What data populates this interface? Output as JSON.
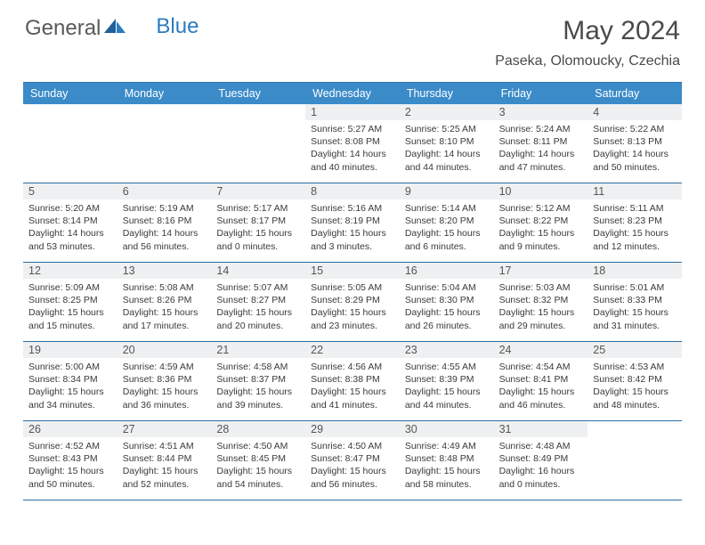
{
  "brand": {
    "part1": "General",
    "part2": "Blue"
  },
  "title": "May 2024",
  "location": "Paseka, Olomoucky, Czechia",
  "colors": {
    "header_bg": "#3b8bc9",
    "header_text": "#ffffff",
    "rule": "#2b6fa8",
    "daynum_bg": "#eef0f1",
    "text": "#3a3a3a",
    "logo_gray": "#5a5a5a",
    "logo_blue": "#2b7cc0"
  },
  "fonts": {
    "title_pt": 30,
    "location_pt": 16,
    "dayheader_pt": 12.5,
    "daynum_pt": 12.5,
    "info_pt": 10.5
  },
  "day_names": [
    "Sunday",
    "Monday",
    "Tuesday",
    "Wednesday",
    "Thursday",
    "Friday",
    "Saturday"
  ],
  "weeks": [
    [
      {
        "n": "",
        "sr": "",
        "ss": "",
        "dl": ""
      },
      {
        "n": "",
        "sr": "",
        "ss": "",
        "dl": ""
      },
      {
        "n": "",
        "sr": "",
        "ss": "",
        "dl": ""
      },
      {
        "n": "1",
        "sr": "Sunrise: 5:27 AM",
        "ss": "Sunset: 8:08 PM",
        "dl": "Daylight: 14 hours and 40 minutes."
      },
      {
        "n": "2",
        "sr": "Sunrise: 5:25 AM",
        "ss": "Sunset: 8:10 PM",
        "dl": "Daylight: 14 hours and 44 minutes."
      },
      {
        "n": "3",
        "sr": "Sunrise: 5:24 AM",
        "ss": "Sunset: 8:11 PM",
        "dl": "Daylight: 14 hours and 47 minutes."
      },
      {
        "n": "4",
        "sr": "Sunrise: 5:22 AM",
        "ss": "Sunset: 8:13 PM",
        "dl": "Daylight: 14 hours and 50 minutes."
      }
    ],
    [
      {
        "n": "5",
        "sr": "Sunrise: 5:20 AM",
        "ss": "Sunset: 8:14 PM",
        "dl": "Daylight: 14 hours and 53 minutes."
      },
      {
        "n": "6",
        "sr": "Sunrise: 5:19 AM",
        "ss": "Sunset: 8:16 PM",
        "dl": "Daylight: 14 hours and 56 minutes."
      },
      {
        "n": "7",
        "sr": "Sunrise: 5:17 AM",
        "ss": "Sunset: 8:17 PM",
        "dl": "Daylight: 15 hours and 0 minutes."
      },
      {
        "n": "8",
        "sr": "Sunrise: 5:16 AM",
        "ss": "Sunset: 8:19 PM",
        "dl": "Daylight: 15 hours and 3 minutes."
      },
      {
        "n": "9",
        "sr": "Sunrise: 5:14 AM",
        "ss": "Sunset: 8:20 PM",
        "dl": "Daylight: 15 hours and 6 minutes."
      },
      {
        "n": "10",
        "sr": "Sunrise: 5:12 AM",
        "ss": "Sunset: 8:22 PM",
        "dl": "Daylight: 15 hours and 9 minutes."
      },
      {
        "n": "11",
        "sr": "Sunrise: 5:11 AM",
        "ss": "Sunset: 8:23 PM",
        "dl": "Daylight: 15 hours and 12 minutes."
      }
    ],
    [
      {
        "n": "12",
        "sr": "Sunrise: 5:09 AM",
        "ss": "Sunset: 8:25 PM",
        "dl": "Daylight: 15 hours and 15 minutes."
      },
      {
        "n": "13",
        "sr": "Sunrise: 5:08 AM",
        "ss": "Sunset: 8:26 PM",
        "dl": "Daylight: 15 hours and 17 minutes."
      },
      {
        "n": "14",
        "sr": "Sunrise: 5:07 AM",
        "ss": "Sunset: 8:27 PM",
        "dl": "Daylight: 15 hours and 20 minutes."
      },
      {
        "n": "15",
        "sr": "Sunrise: 5:05 AM",
        "ss": "Sunset: 8:29 PM",
        "dl": "Daylight: 15 hours and 23 minutes."
      },
      {
        "n": "16",
        "sr": "Sunrise: 5:04 AM",
        "ss": "Sunset: 8:30 PM",
        "dl": "Daylight: 15 hours and 26 minutes."
      },
      {
        "n": "17",
        "sr": "Sunrise: 5:03 AM",
        "ss": "Sunset: 8:32 PM",
        "dl": "Daylight: 15 hours and 29 minutes."
      },
      {
        "n": "18",
        "sr": "Sunrise: 5:01 AM",
        "ss": "Sunset: 8:33 PM",
        "dl": "Daylight: 15 hours and 31 minutes."
      }
    ],
    [
      {
        "n": "19",
        "sr": "Sunrise: 5:00 AM",
        "ss": "Sunset: 8:34 PM",
        "dl": "Daylight: 15 hours and 34 minutes."
      },
      {
        "n": "20",
        "sr": "Sunrise: 4:59 AM",
        "ss": "Sunset: 8:36 PM",
        "dl": "Daylight: 15 hours and 36 minutes."
      },
      {
        "n": "21",
        "sr": "Sunrise: 4:58 AM",
        "ss": "Sunset: 8:37 PM",
        "dl": "Daylight: 15 hours and 39 minutes."
      },
      {
        "n": "22",
        "sr": "Sunrise: 4:56 AM",
        "ss": "Sunset: 8:38 PM",
        "dl": "Daylight: 15 hours and 41 minutes."
      },
      {
        "n": "23",
        "sr": "Sunrise: 4:55 AM",
        "ss": "Sunset: 8:39 PM",
        "dl": "Daylight: 15 hours and 44 minutes."
      },
      {
        "n": "24",
        "sr": "Sunrise: 4:54 AM",
        "ss": "Sunset: 8:41 PM",
        "dl": "Daylight: 15 hours and 46 minutes."
      },
      {
        "n": "25",
        "sr": "Sunrise: 4:53 AM",
        "ss": "Sunset: 8:42 PM",
        "dl": "Daylight: 15 hours and 48 minutes."
      }
    ],
    [
      {
        "n": "26",
        "sr": "Sunrise: 4:52 AM",
        "ss": "Sunset: 8:43 PM",
        "dl": "Daylight: 15 hours and 50 minutes."
      },
      {
        "n": "27",
        "sr": "Sunrise: 4:51 AM",
        "ss": "Sunset: 8:44 PM",
        "dl": "Daylight: 15 hours and 52 minutes."
      },
      {
        "n": "28",
        "sr": "Sunrise: 4:50 AM",
        "ss": "Sunset: 8:45 PM",
        "dl": "Daylight: 15 hours and 54 minutes."
      },
      {
        "n": "29",
        "sr": "Sunrise: 4:50 AM",
        "ss": "Sunset: 8:47 PM",
        "dl": "Daylight: 15 hours and 56 minutes."
      },
      {
        "n": "30",
        "sr": "Sunrise: 4:49 AM",
        "ss": "Sunset: 8:48 PM",
        "dl": "Daylight: 15 hours and 58 minutes."
      },
      {
        "n": "31",
        "sr": "Sunrise: 4:48 AM",
        "ss": "Sunset: 8:49 PM",
        "dl": "Daylight: 16 hours and 0 minutes."
      },
      {
        "n": "",
        "sr": "",
        "ss": "",
        "dl": ""
      }
    ]
  ]
}
